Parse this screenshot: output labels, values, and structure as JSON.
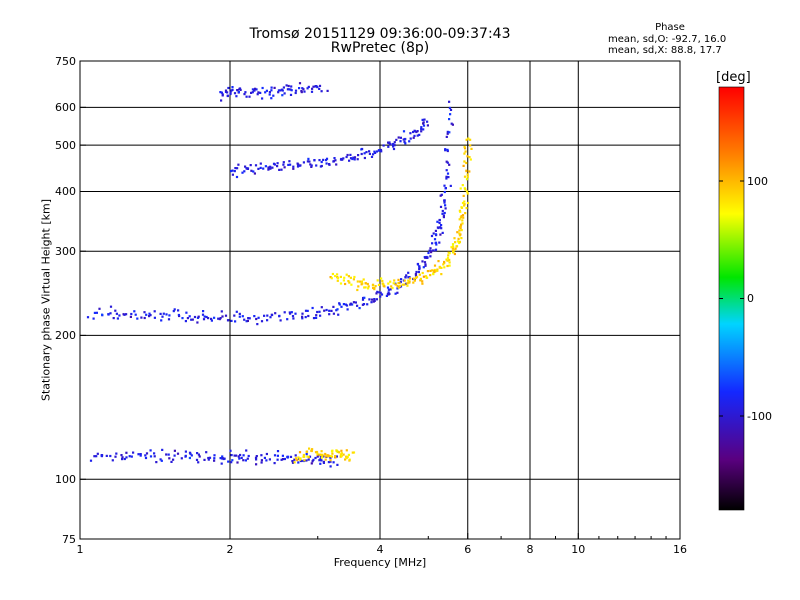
{
  "chart_data": {
    "type": "scatter",
    "title": "Tromsø 20151129 09:36:00-09:37:43",
    "subtitle": "RwPretec (8p)",
    "xlabel": "Frequency [MHz]",
    "ylabel": "Stationary phase Virtual Height [km]",
    "x_scale": "log",
    "y_scale": "log",
    "xlim": [
      1,
      16
    ],
    "ylim": [
      75,
      750
    ],
    "grid": true,
    "x_ticks": [
      1,
      2,
      4,
      6,
      8,
      10,
      16
    ],
    "x_tick_labels": [
      "1",
      "2",
      "4",
      "6",
      "8",
      "10",
      "16"
    ],
    "y_ticks": [
      75,
      100,
      200,
      300,
      400,
      500,
      600,
      750
    ],
    "y_tick_labels": [
      "75",
      "100",
      "200",
      "300",
      "400",
      "500",
      "600",
      "750"
    ],
    "phase_stats": {
      "heading": "Phase",
      "o_mode": "mean, sd,O: -92.7, 16.0",
      "x_mode": "mean, sd,X:  88.8, 17.7"
    },
    "colorbar": {
      "unit": "[deg]",
      "range": [
        -180,
        180
      ],
      "tick_values": [
        100,
        0,
        -100
      ],
      "tick_labels": [
        "100",
        "0",
        "-100"
      ]
    },
    "series": [
      {
        "name": "O-mode",
        "mean_phase": -92.7,
        "sd": 16.0,
        "traces": [
          {
            "x": [
              1.05,
              1.3,
              1.6,
              1.9,
              2.2,
              2.6,
              3.0,
              3.3
            ],
            "y": [
              112,
              112,
              112,
              111,
              111,
              111,
              110,
              110
            ]
          },
          {
            "x": [
              1.05,
              1.3,
              1.6,
              1.9,
              2.3,
              2.8,
              3.3,
              3.8,
              4.3,
              4.8,
              5.1,
              5.3,
              5.45,
              5.55
            ],
            "y": [
              222,
              221,
              220,
              219,
              219,
              222,
              228,
              237,
              250,
              275,
              305,
              345,
              420,
              620
            ]
          },
          {
            "x": [
              2.0,
              2.3,
              2.7,
              3.1,
              3.6,
              4.1,
              4.6,
              5.0
            ],
            "y": [
              440,
              445,
              452,
              462,
              476,
              495,
              520,
              560
            ]
          },
          {
            "x": [
              1.9,
              2.1,
              2.4,
              2.7,
              3.1
            ],
            "y": [
              640,
              645,
              648,
              652,
              658
            ]
          }
        ]
      },
      {
        "name": "X-mode",
        "mean_phase": 88.8,
        "sd": 17.7,
        "traces": [
          {
            "x": [
              2.7,
              3.0,
              3.3,
              3.5
            ],
            "y": [
              112,
              113,
              112,
              112
            ]
          },
          {
            "x": [
              3.2,
              3.6,
              4.0,
              4.5,
              5.0,
              5.4,
              5.7,
              5.85,
              5.95,
              6.05
            ],
            "y": [
              265,
              258,
              255,
              258,
              268,
              285,
              310,
              350,
              420,
              520
            ]
          }
        ]
      }
    ]
  }
}
